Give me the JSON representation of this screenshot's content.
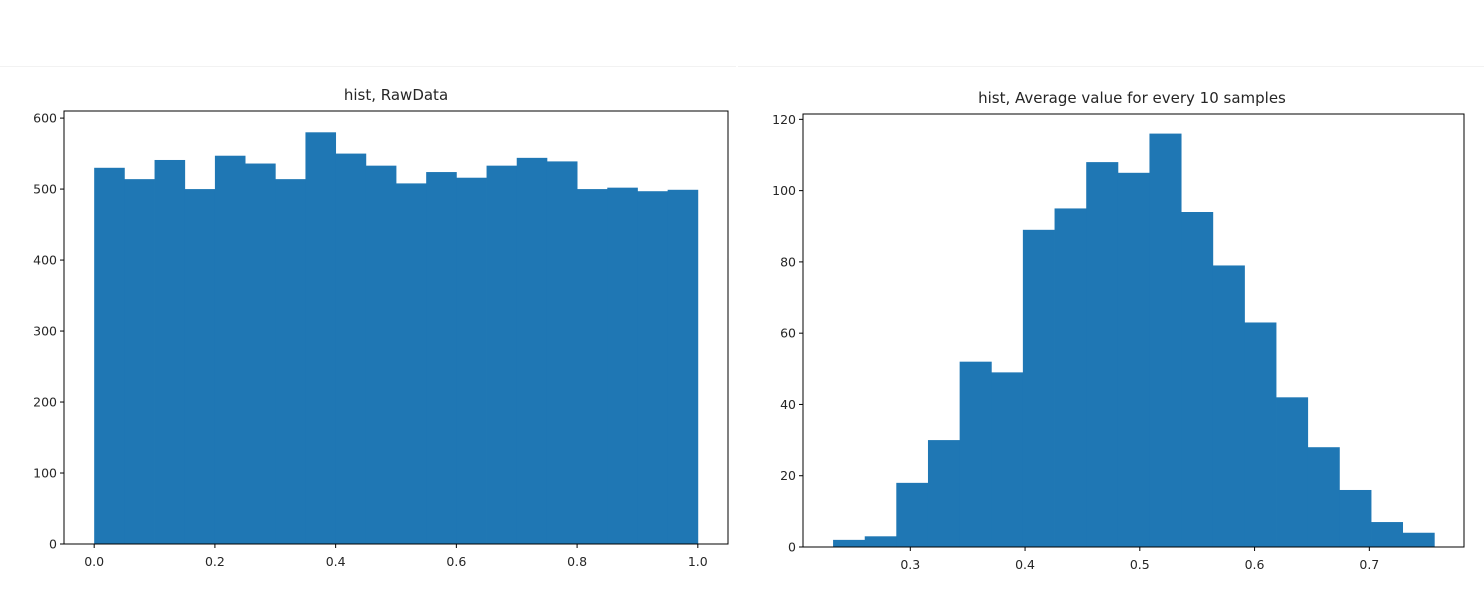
{
  "chart_data": [
    {
      "type": "bar",
      "title": "hist, RawData",
      "xlabel": "",
      "ylabel": "",
      "xlim": [
        -0.05,
        1.05
      ],
      "ylim": [
        0,
        610
      ],
      "xticks": [
        "0.0",
        "0.2",
        "0.4",
        "0.6",
        "0.8",
        "1.0"
      ],
      "xtick_values": [
        0.0,
        0.2,
        0.4,
        0.6,
        0.8,
        1.0
      ],
      "yticks": [
        "0",
        "100",
        "200",
        "300",
        "400",
        "500",
        "600"
      ],
      "ytick_values": [
        0,
        100,
        200,
        300,
        400,
        500,
        600
      ],
      "bin_edges": [
        0.0,
        0.05,
        0.1,
        0.15,
        0.2,
        0.25,
        0.3,
        0.35,
        0.4,
        0.45,
        0.5,
        0.55,
        0.6,
        0.65,
        0.7,
        0.75,
        0.8,
        0.85,
        0.9,
        0.95,
        1.0
      ],
      "values": [
        530,
        514,
        541,
        500,
        547,
        536,
        514,
        580,
        550,
        533,
        508,
        524,
        516,
        533,
        544,
        539,
        500,
        502,
        497,
        499
      ],
      "color": "#1f77b4",
      "grid": false
    },
    {
      "type": "bar",
      "title": "hist, Average value for every 10 samples",
      "xlabel": "",
      "ylabel": "",
      "xlim": [
        0.2065,
        0.7825
      ],
      "ylim": [
        0,
        121.5
      ],
      "xticks": [
        "0.3",
        "0.4",
        "0.5",
        "0.6",
        "0.7"
      ],
      "xtick_values": [
        0.3,
        0.4,
        0.5,
        0.6,
        0.7
      ],
      "yticks": [
        "0",
        "20",
        "40",
        "60",
        "80",
        "100",
        "120"
      ],
      "ytick_values": [
        0,
        20,
        40,
        60,
        80,
        100,
        120
      ],
      "bin_edges": [
        0.2327,
        0.2603,
        0.2878,
        0.3154,
        0.343,
        0.3706,
        0.3981,
        0.4257,
        0.4533,
        0.4809,
        0.5084,
        0.536,
        0.5636,
        0.5912,
        0.6187,
        0.6463,
        0.6739,
        0.7015,
        0.729,
        0.7566
      ],
      "values": [
        2,
        3,
        18,
        30,
        52,
        49,
        89,
        95,
        108,
        105,
        116,
        94,
        79,
        63,
        42,
        28,
        16,
        7,
        4
      ],
      "color": "#1f77b4",
      "grid": false
    }
  ]
}
